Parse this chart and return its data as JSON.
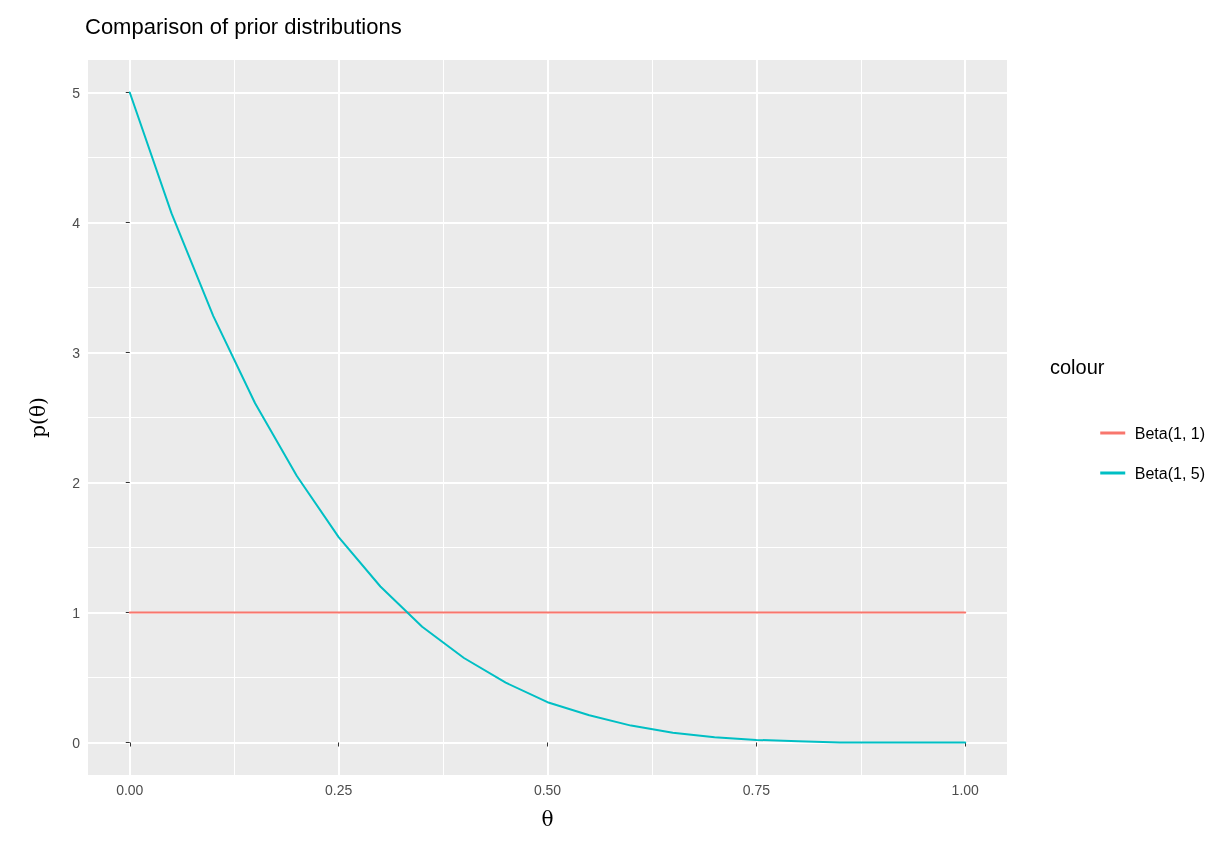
{
  "chart_data": {
    "type": "line",
    "title": "Comparison of prior distributions",
    "xlabel": "θ",
    "ylabel": "p(θ)",
    "legend_title": "colour",
    "xlim": [
      -0.05,
      1.05
    ],
    "ylim": [
      -0.25,
      5.25
    ],
    "xticks": [
      {
        "value": 0,
        "label": "0.00"
      },
      {
        "value": 0.25,
        "label": "0.25"
      },
      {
        "value": 0.5,
        "label": "0.50"
      },
      {
        "value": 0.75,
        "label": "0.75"
      },
      {
        "value": 1,
        "label": "1.00"
      }
    ],
    "yticks": [
      0,
      1,
      2,
      3,
      4,
      5
    ],
    "grid": true,
    "legend": "right",
    "series": [
      {
        "name": "Beta(1, 1)",
        "color": "#f8766d",
        "x": [
          0,
          1
        ],
        "values": [
          1,
          1
        ]
      },
      {
        "name": "Beta(1, 5)",
        "color": "#00bfc4",
        "x": [
          0,
          0.05,
          0.1,
          0.15,
          0.2,
          0.25,
          0.3,
          0.35,
          0.4,
          0.45,
          0.5,
          0.55,
          0.6,
          0.65,
          0.7,
          0.75,
          0.8,
          0.85,
          0.9,
          0.95,
          1
        ],
        "values": [
          5,
          4.07,
          3.28,
          2.61,
          2.05,
          1.58,
          1.2,
          0.89,
          0.65,
          0.46,
          0.31,
          0.21,
          0.13,
          0.075,
          0.04,
          0.02,
          0.01,
          0,
          0,
          0,
          0
        ]
      }
    ]
  }
}
